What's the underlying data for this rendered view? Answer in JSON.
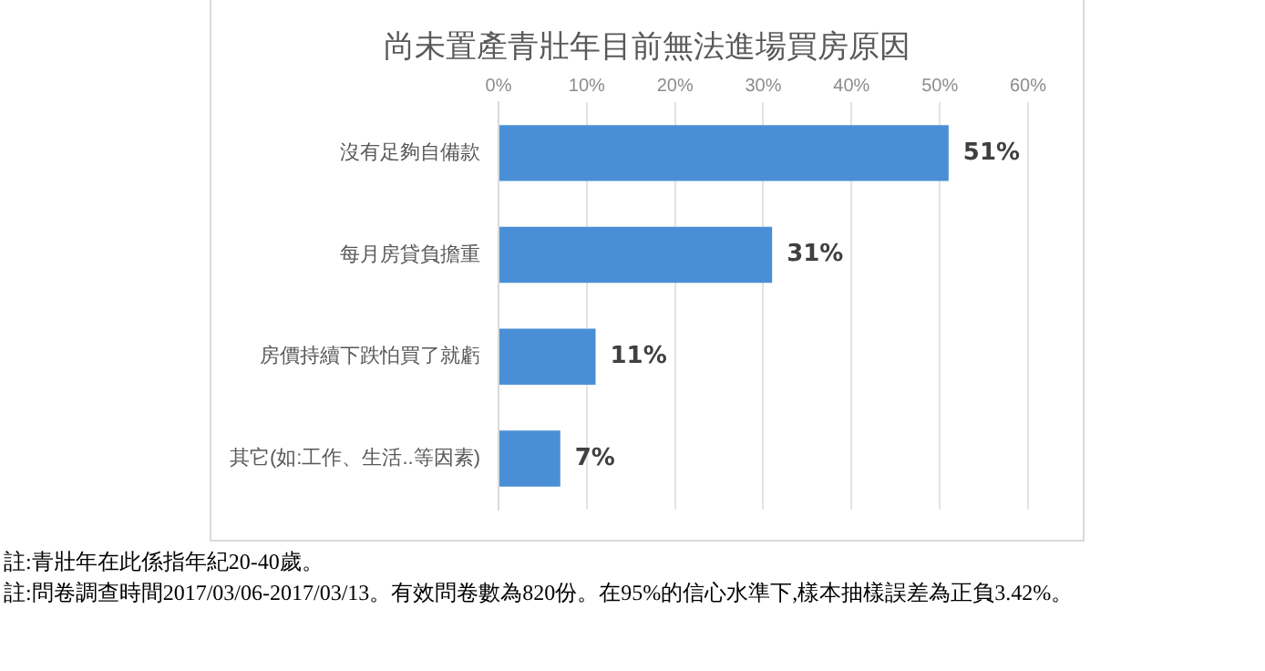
{
  "chart_data": {
    "type": "bar",
    "orientation": "horizontal",
    "title": "尚未置產青壯年目前無法進場買房原因",
    "categories": [
      "沒有足夠自備款",
      "每月房貸負擔重",
      "房價持續下跌怕買了就虧",
      "其它(如:工作、生活..等因素)"
    ],
    "values": [
      51,
      31,
      11,
      7
    ],
    "color": "#4a8fd6",
    "data_labels": true,
    "value_labels": [
      "51%",
      "31%",
      "11%",
      "7%"
    ],
    "xlim": [
      0,
      60
    ],
    "xticks": [
      {
        "value": 0,
        "label": "0%"
      },
      {
        "value": 10,
        "label": "10%"
      },
      {
        "value": 20,
        "label": "20%"
      },
      {
        "value": 30,
        "label": "30%"
      },
      {
        "value": 40,
        "label": "40%"
      },
      {
        "value": 50,
        "label": "50%"
      },
      {
        "value": 60,
        "label": "60%"
      }
    ],
    "grid": "x",
    "legend": false,
    "annotations": [
      "註:青壯年在此係指年紀20-40歲。",
      "註:問卷調查時間2017/03/06-2017/03/13。有效問卷數為820份。在95%的信心水準下,樣本抽樣誤差為正負3.42%。"
    ]
  }
}
